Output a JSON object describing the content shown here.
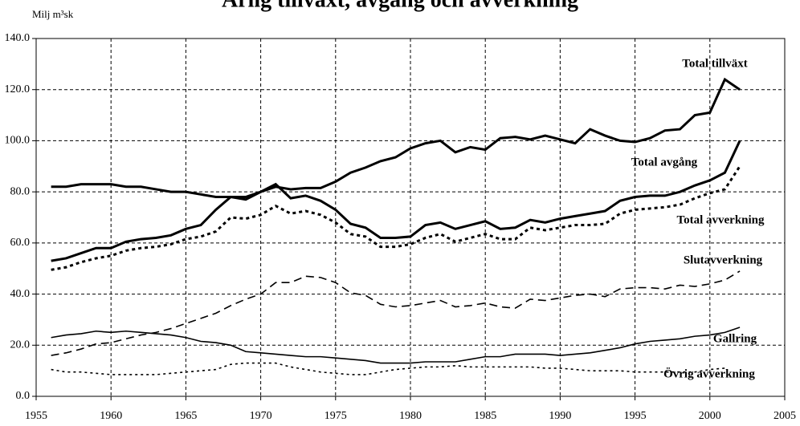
{
  "chart_data": {
    "type": "line",
    "title": "Årlig tillväxt, avgång och avverkning",
    "y_label": "Milj m³sk",
    "x": [
      1956,
      1957,
      1958,
      1959,
      1960,
      1961,
      1962,
      1963,
      1964,
      1965,
      1966,
      1967,
      1968,
      1969,
      1970,
      1971,
      1972,
      1973,
      1974,
      1975,
      1976,
      1977,
      1978,
      1979,
      1980,
      1981,
      1982,
      1983,
      1984,
      1985,
      1986,
      1987,
      1988,
      1989,
      1990,
      1991,
      1992,
      1993,
      1994,
      1995,
      1996,
      1997,
      1998,
      1999,
      2000,
      2001,
      2002
    ],
    "xlim": [
      1955,
      2005
    ],
    "xticks": [
      1955,
      1960,
      1965,
      1970,
      1975,
      1980,
      1985,
      1990,
      1995,
      2000,
      2005
    ],
    "ylim": [
      0,
      140
    ],
    "yticks": [
      {
        "value": 0,
        "label": "0.0"
      },
      {
        "value": 20,
        "label": "20.0"
      },
      {
        "value": 40,
        "label": "40.0"
      },
      {
        "value": 60,
        "label": "60.0"
      },
      {
        "value": 80,
        "label": "80.0"
      },
      {
        "value": 100,
        "label": "100.0"
      },
      {
        "value": 120,
        "label": "120.0"
      },
      {
        "value": 140,
        "label": "140.0"
      }
    ],
    "grid": true,
    "series": [
      {
        "name": "Total tillväxt",
        "color": "#000000",
        "line_style": "solid",
        "weight": "bold",
        "values": [
          82,
          82,
          83,
          83,
          83,
          82,
          82,
          81,
          80,
          80,
          79,
          78,
          78,
          78,
          80,
          82,
          81,
          81.5,
          81.5,
          84,
          87.5,
          89.5,
          92,
          93.5,
          97,
          99,
          100,
          95.5,
          97.5,
          96.5,
          101,
          101.5,
          100.5,
          102,
          100.5,
          99,
          104.5,
          102,
          100,
          99.5,
          101,
          104,
          104.5,
          110,
          111,
          124,
          120
        ]
      },
      {
        "name": "Total avgång",
        "color": "#000000",
        "line_style": "solid",
        "weight": "bold",
        "values": [
          53,
          54,
          56,
          58,
          58,
          60.5,
          61.5,
          62,
          63,
          65.5,
          67,
          73,
          78,
          77,
          80,
          83,
          77.5,
          78.5,
          76.5,
          73,
          67.5,
          66,
          62,
          62,
          62.5,
          67,
          68,
          65.5,
          67,
          68.5,
          65.5,
          66,
          69,
          68,
          69.5,
          70.5,
          71.5,
          72.5,
          76.5,
          78,
          78.5,
          78.5,
          80,
          82.5,
          84.5,
          87.5,
          100
        ]
      },
      {
        "name": "Total avverkning",
        "color": "#000000",
        "line_style": "dotted",
        "weight": "bold",
        "values": [
          49.5,
          50.5,
          52.5,
          54,
          55,
          57,
          58,
          58.5,
          59.5,
          61.5,
          62.5,
          64.5,
          70,
          69.5,
          71,
          74.5,
          71.5,
          72.5,
          71,
          68,
          63.5,
          62.5,
          58.5,
          58.5,
          59.5,
          62,
          63.5,
          60.5,
          62,
          63.5,
          61.5,
          61.5,
          66,
          65,
          66,
          67,
          67,
          67.5,
          71.5,
          73,
          73.5,
          74,
          75,
          77.5,
          79.5,
          81,
          90
        ]
      },
      {
        "name": "Slutavverkning",
        "color": "#000000",
        "line_style": "dashed",
        "weight": "normal",
        "values": [
          16,
          17,
          18.5,
          20.5,
          21,
          22.5,
          24,
          25,
          26.5,
          28.5,
          30.5,
          32.5,
          35.5,
          38,
          40,
          44.5,
          44.5,
          47,
          46.5,
          44.5,
          40.5,
          39.5,
          36,
          35,
          35.5,
          36.5,
          37.5,
          35,
          35.5,
          36.5,
          35,
          34.5,
          38,
          37.5,
          38.5,
          39.5,
          40,
          39,
          42,
          42.5,
          42.5,
          42,
          43.5,
          43,
          44,
          45.5,
          49
        ]
      },
      {
        "name": "Gallring",
        "color": "#000000",
        "line_style": "solid",
        "weight": "normal",
        "values": [
          23,
          24,
          24.5,
          25.5,
          25,
          25.5,
          25,
          24.5,
          24,
          23,
          21.5,
          21,
          20,
          17.5,
          17,
          16.5,
          16,
          15.5,
          15.5,
          15,
          14.5,
          14,
          13,
          13,
          13,
          13.5,
          13.5,
          13.5,
          14.5,
          15.5,
          15.5,
          16.5,
          16.5,
          16.5,
          16,
          16.5,
          17,
          18,
          19,
          20.5,
          21.5,
          22,
          22.5,
          23.5,
          24,
          25,
          27
        ]
      },
      {
        "name": "Övrig avverkning",
        "color": "#000000",
        "line_style": "dotted",
        "weight": "normal",
        "values": [
          10.5,
          9.5,
          9.5,
          9,
          8.5,
          8.5,
          8.5,
          8.5,
          9,
          9.5,
          10,
          10.5,
          12.5,
          13,
          13,
          13,
          11.5,
          10.5,
          9.5,
          9,
          8.5,
          8.5,
          9.5,
          10.5,
          11,
          11.5,
          11.5,
          12,
          11.5,
          11.5,
          11.5,
          11.5,
          11.5,
          11,
          11,
          10.5,
          10,
          10,
          10,
          9.5,
          9.5,
          9.5,
          9.5,
          9.5,
          10.5,
          11,
          null
        ]
      }
    ]
  }
}
